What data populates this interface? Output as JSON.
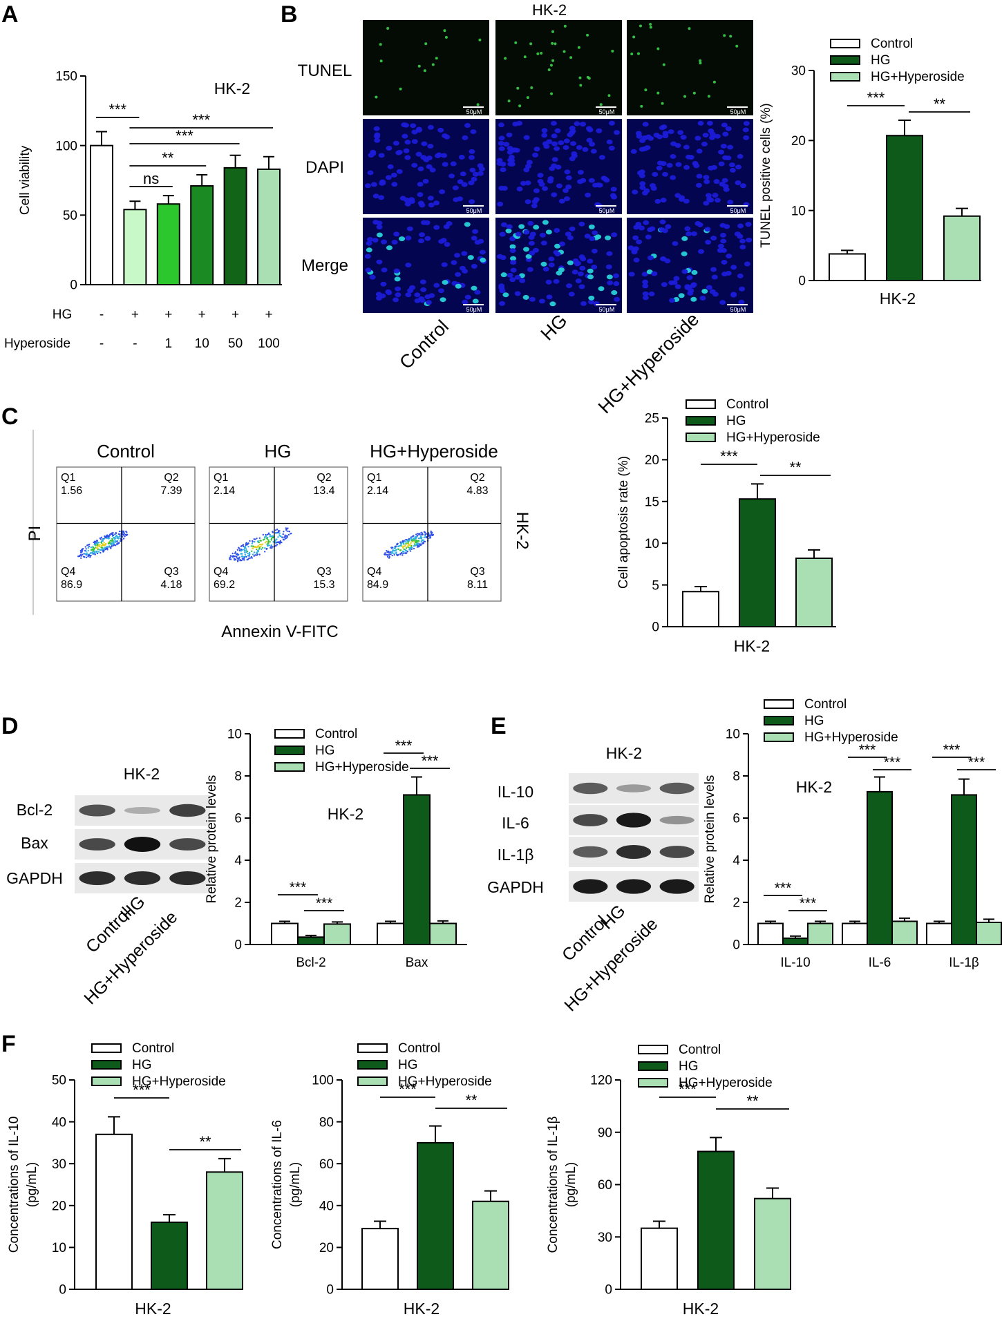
{
  "colors": {
    "control": "#ffffff",
    "hg": "#0e5a1b",
    "hyp": "#a9dfb2",
    "hyp_dose": [
      "#c8f7c8",
      "#2cc72c",
      "#1b8a22",
      "#126518",
      "#a9dfb2"
    ],
    "dapi": "#1b1bd8",
    "tunel": "#3ad24a"
  },
  "panels": {
    "a": {
      "letter": "A"
    },
    "b": {
      "letter": "B",
      "title": "HK-2",
      "row_labels": [
        "TUNEL",
        "DAPI",
        "Merge"
      ],
      "col_labels": [
        "Control",
        "HG",
        "HG+Hyperoside"
      ],
      "scale_bar": "50μM"
    },
    "c": {
      "letter": "C",
      "col_titles": [
        "Control",
        "HG",
        "HG+Hyperoside"
      ],
      "y_label": "PI",
      "x_label": "Annexin V-FITC",
      "side_label": "HK-2",
      "quadrants": [
        {
          "q1": "Q1",
          "v1": "1.56",
          "q2": "Q2",
          "v2": "7.39",
          "q4": "Q4",
          "v4": "86.9",
          "q3": "Q3",
          "v3": "4.18"
        },
        {
          "q1": "Q1",
          "v1": "2.14",
          "q2": "Q2",
          "v2": "13.4",
          "q4": "Q4",
          "v4": "69.2",
          "q3": "Q3",
          "v3": "15.3"
        },
        {
          "q1": "Q1",
          "v1": "2.14",
          "q2": "Q2",
          "v2": "4.83",
          "q4": "Q4",
          "v4": "84.9",
          "q3": "Q3",
          "v3": "8.11"
        }
      ]
    },
    "d": {
      "letter": "D",
      "blot_title": "HK-2",
      "rows": [
        "Bcl-2",
        "Bax",
        "GAPDH"
      ],
      "lanes": [
        "Control",
        "HG",
        "HG+Hyperoside"
      ]
    },
    "e": {
      "letter": "E",
      "blot_title": "HK-2",
      "rows": [
        "IL-10",
        "IL-6",
        "IL-1β",
        "GAPDH"
      ],
      "lanes": [
        "Control",
        "HG",
        "HG+Hyperoside"
      ]
    },
    "f": {
      "letter": "F"
    }
  },
  "chart_data": [
    {
      "id": "A",
      "type": "bar",
      "title": "HK-2",
      "xlabel": "",
      "ylabel": "Cell viability",
      "ylim": [
        0,
        150
      ],
      "yticks": [
        0,
        50,
        100,
        150
      ],
      "values": [
        100,
        54,
        58,
        71,
        84,
        83
      ],
      "errors": [
        10,
        6,
        6,
        8,
        9,
        9
      ],
      "rows": [
        {
          "label": "HG",
          "values": [
            "-",
            "+",
            "+",
            "+",
            "+",
            "+"
          ]
        },
        {
          "label": "Hyperoside",
          "values": [
            "-",
            "-",
            "1",
            "10",
            "50",
            "100"
          ]
        }
      ],
      "significance": [
        "***",
        "ns",
        "**",
        "***",
        "***"
      ]
    },
    {
      "id": "B",
      "type": "bar",
      "xlabel": "HK-2",
      "ylabel": "TUNEL positive cells (%)",
      "ylim": [
        0,
        30
      ],
      "yticks": [
        0,
        10,
        20,
        30
      ],
      "categories": [
        "Control",
        "HG",
        "HG+Hyperoside"
      ],
      "values": [
        3.8,
        20.7,
        9.2
      ],
      "errors": [
        0.5,
        2.2,
        1.1
      ],
      "significance": [
        "***",
        "**"
      ]
    },
    {
      "id": "C",
      "type": "bar",
      "xlabel": "HK-2",
      "ylabel": "Cell apoptosis rate (%)",
      "ylim": [
        0,
        25
      ],
      "yticks": [
        0,
        5,
        10,
        15,
        20,
        25
      ],
      "categories": [
        "Control",
        "HG",
        "HG+Hyperoside"
      ],
      "values": [
        4.2,
        15.3,
        8.2
      ],
      "errors": [
        0.6,
        1.8,
        1.0
      ],
      "significance": [
        "***",
        "**"
      ]
    },
    {
      "id": "D",
      "type": "bar",
      "title": "HK-2",
      "ylabel": "Relative protein levels",
      "ylim": [
        0,
        10
      ],
      "yticks": [
        0,
        2,
        4,
        6,
        8,
        10
      ],
      "categories": [
        "Bcl-2",
        "Bax"
      ],
      "series": [
        {
          "name": "Control",
          "values": [
            1.0,
            1.0
          ],
          "errors": [
            0.1,
            0.1
          ]
        },
        {
          "name": "HG",
          "values": [
            0.35,
            7.1
          ],
          "errors": [
            0.08,
            0.85
          ]
        },
        {
          "name": "HG+Hyperoside",
          "values": [
            0.97,
            1.0
          ],
          "errors": [
            0.1,
            0.12
          ]
        }
      ],
      "significance": [
        "***",
        "***",
        "***",
        "***"
      ]
    },
    {
      "id": "E",
      "type": "bar",
      "title": "HK-2",
      "ylabel": "Relative protein levels",
      "ylim": [
        0,
        10
      ],
      "yticks": [
        0,
        2,
        4,
        6,
        8,
        10
      ],
      "categories": [
        "IL-10",
        "IL-6",
        "IL-1β"
      ],
      "series": [
        {
          "name": "Control",
          "values": [
            1.0,
            1.0,
            1.0
          ],
          "errors": [
            0.1,
            0.1,
            0.1
          ]
        },
        {
          "name": "HG",
          "values": [
            0.3,
            7.25,
            7.1
          ],
          "errors": [
            0.1,
            0.7,
            0.75
          ]
        },
        {
          "name": "HG+Hyperoside",
          "values": [
            1.0,
            1.1,
            1.05
          ],
          "errors": [
            0.1,
            0.15,
            0.15
          ]
        }
      ],
      "significance": [
        "***",
        "***",
        "***",
        "***",
        "***",
        "***"
      ]
    },
    {
      "id": "F1",
      "type": "bar",
      "xlabel": "HK-2",
      "ylabel": "Concentrations of IL-10",
      "ylabel2": "(pg/mL)",
      "ylim": [
        0,
        50
      ],
      "yticks": [
        0,
        10,
        20,
        30,
        40,
        50
      ],
      "categories": [
        "Control",
        "HG",
        "HG+Hyperoside"
      ],
      "values": [
        37,
        16,
        28
      ],
      "errors": [
        4.2,
        1.8,
        3.2
      ],
      "significance": [
        "***",
        "**"
      ]
    },
    {
      "id": "F2",
      "type": "bar",
      "xlabel": "HK-2",
      "ylabel": "Concentrations of IL-6",
      "ylabel2": "(pg/mL)",
      "ylim": [
        0,
        100
      ],
      "yticks": [
        0,
        20,
        40,
        60,
        80,
        100
      ],
      "categories": [
        "Control",
        "HG",
        "HG+Hyperoside"
      ],
      "values": [
        29,
        70,
        42
      ],
      "errors": [
        3.5,
        8,
        5
      ],
      "significance": [
        "***",
        "**"
      ]
    },
    {
      "id": "F3",
      "type": "bar",
      "xlabel": "HK-2",
      "ylabel": "Concentrations of IL-1β",
      "ylabel2": "(pg/mL)",
      "ylim": [
        0,
        120
      ],
      "yticks": [
        0,
        30,
        60,
        90,
        120
      ],
      "categories": [
        "Control",
        "HG",
        "HG+Hyperoside"
      ],
      "values": [
        35,
        79,
        52
      ],
      "errors": [
        4,
        8,
        6
      ],
      "significance": [
        "***",
        "**"
      ]
    }
  ]
}
